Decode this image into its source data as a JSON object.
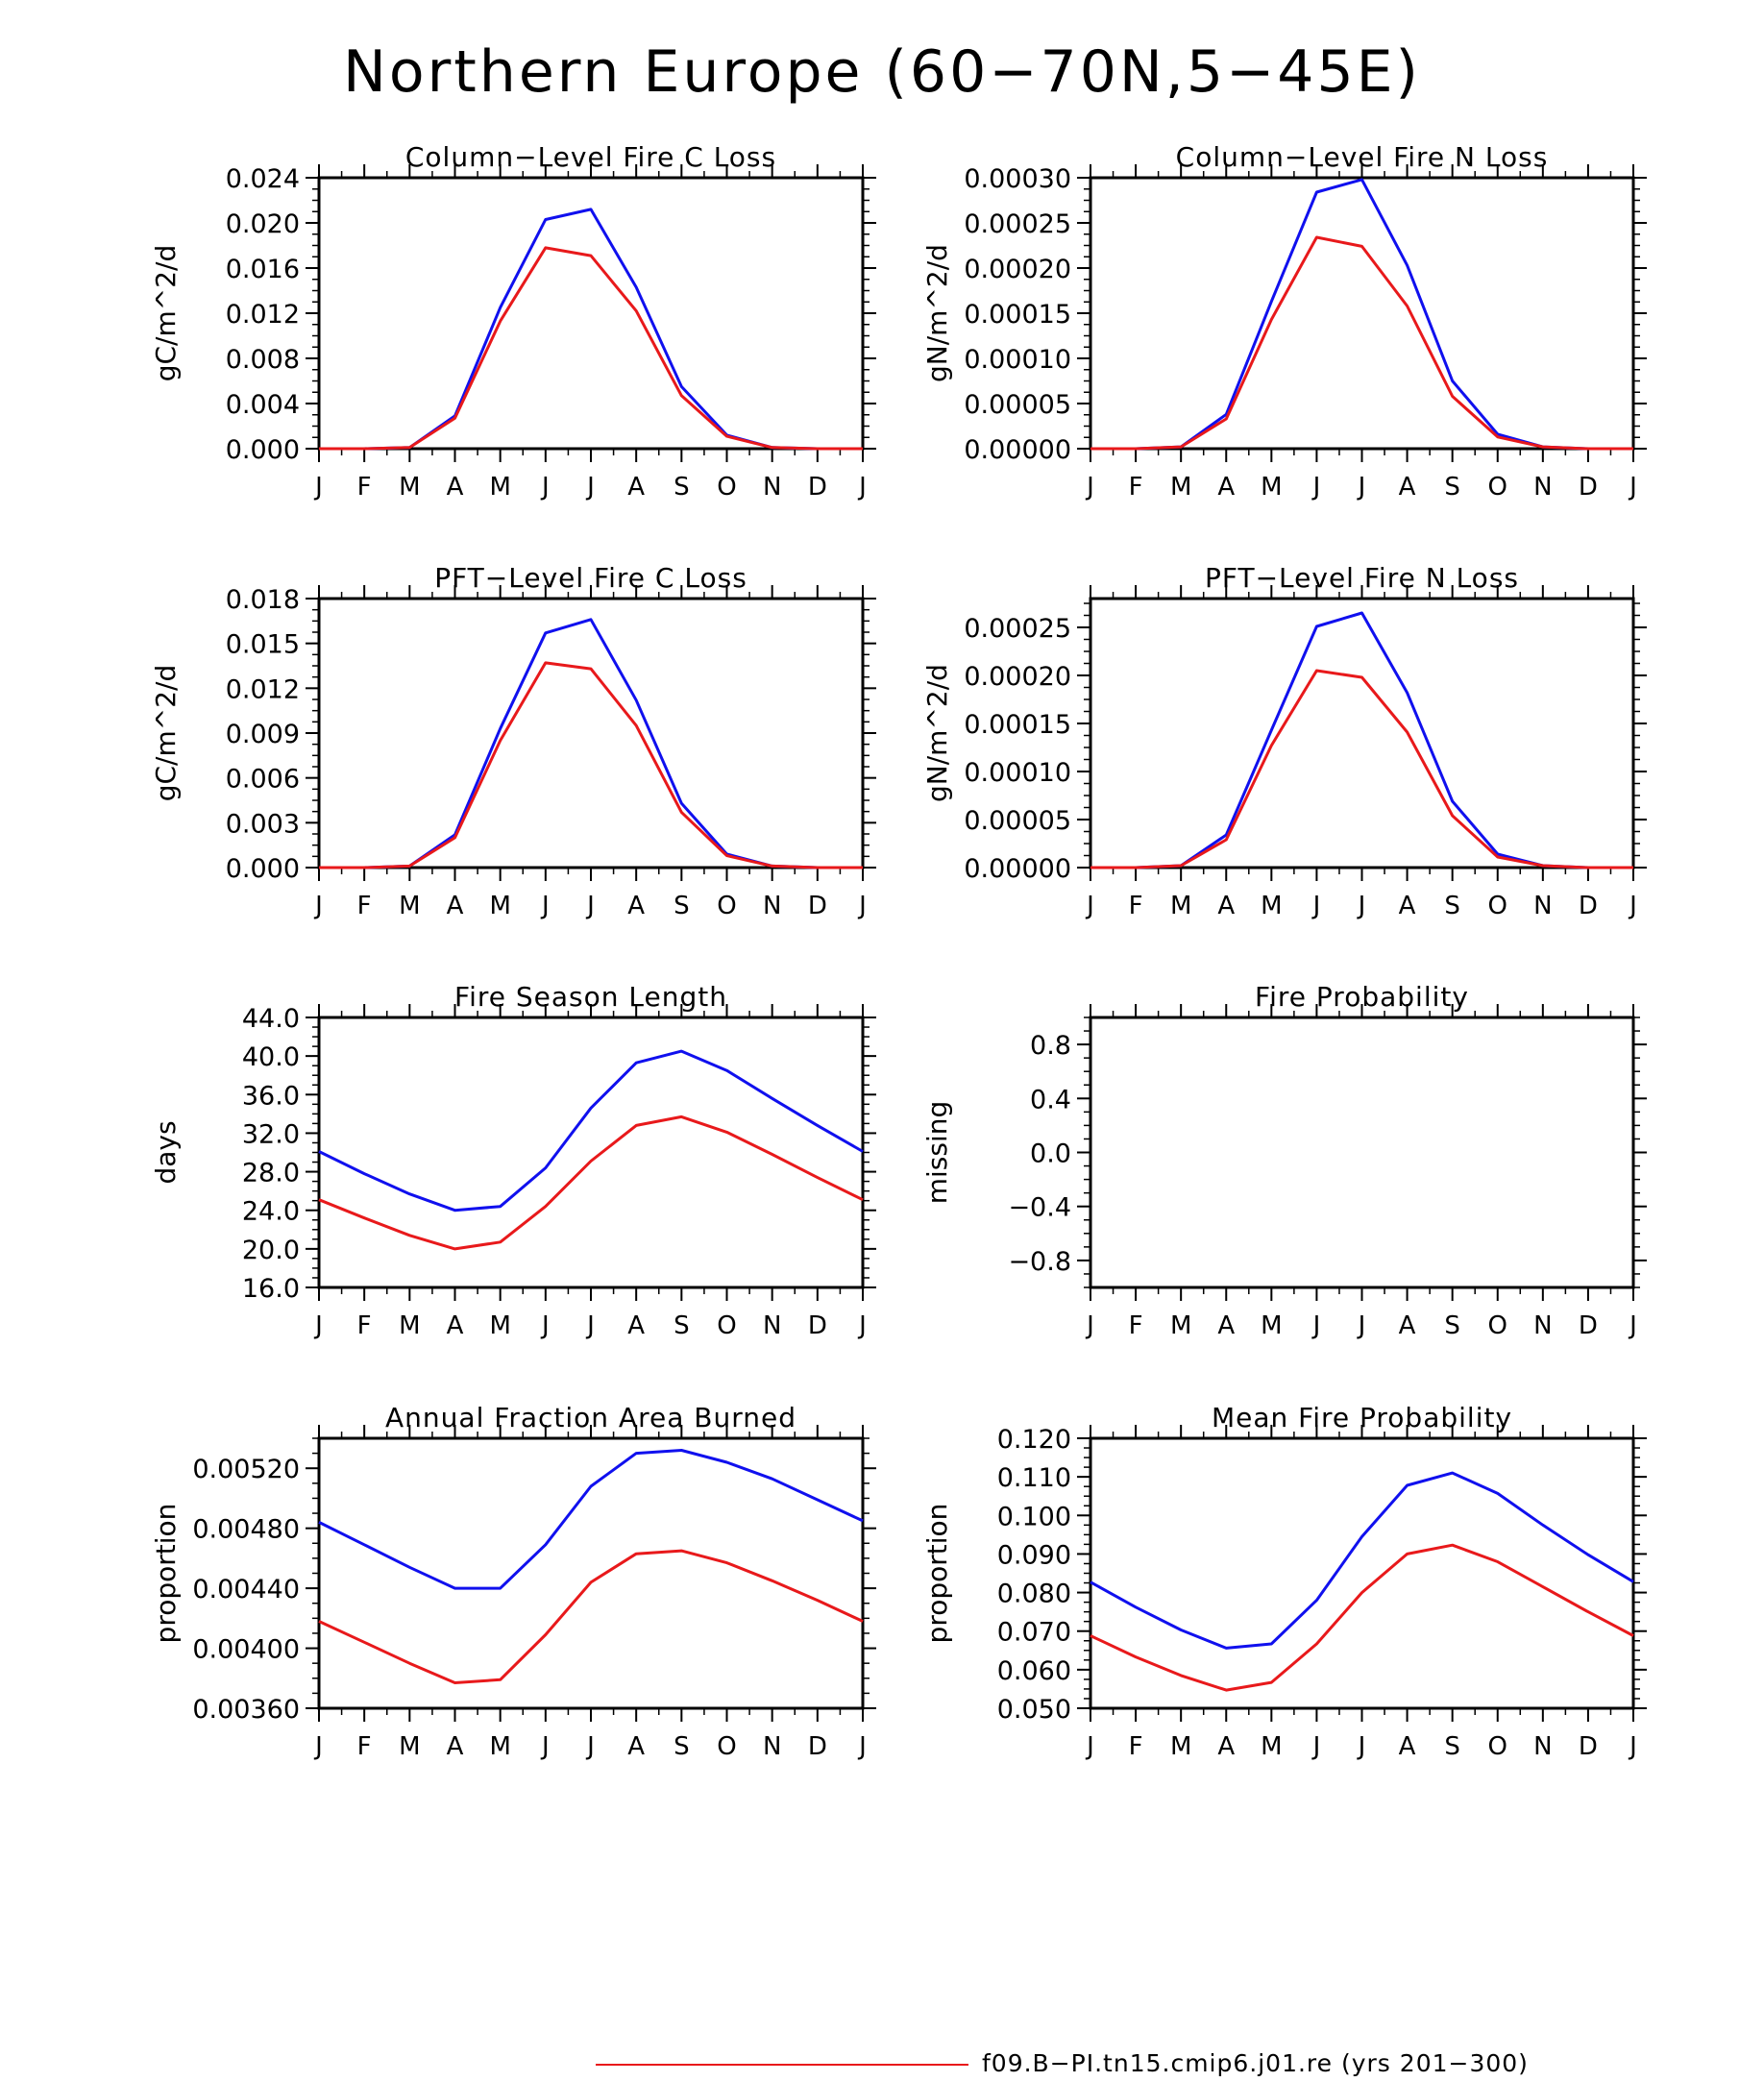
{
  "figure": {
    "title": "Northern Europe (60−70N,5−45E)",
    "legend": {
      "label": "f09.B−PI.tn15.cmip6.j01.re (yrs 201−300)",
      "color": "#e8191b"
    },
    "series_colors": {
      "blue": "#1010ee",
      "red": "#e8191b"
    }
  },
  "chart_data": [
    {
      "type": "line",
      "title": "Column−Level Fire C Loss",
      "ylabel": "gC/m^2/d",
      "ylim": [
        0,
        0.024
      ],
      "yticks": [
        "0.000",
        "0.004",
        "0.008",
        "0.012",
        "0.016",
        "0.020",
        "0.024"
      ],
      "categories": [
        "J",
        "F",
        "M",
        "A",
        "M",
        "J",
        "J",
        "A",
        "S",
        "O",
        "N",
        "D",
        "J"
      ],
      "series": [
        {
          "color": "#1010ee",
          "values": [
            0.0,
            0.0,
            0.0001,
            0.0029,
            0.0125,
            0.0203,
            0.0212,
            0.0143,
            0.0055,
            0.0012,
            0.0001,
            0.0,
            0.0
          ]
        },
        {
          "color": "#e8191b",
          "values": [
            0.0,
            0.0,
            0.0001,
            0.0027,
            0.0113,
            0.0178,
            0.0171,
            0.0122,
            0.0047,
            0.0011,
            0.0001,
            0.0,
            0.0
          ]
        }
      ]
    },
    {
      "type": "line",
      "title": "Column−Level Fire N Loss",
      "ylabel": "gN/m^2/d",
      "ylim": [
        0,
        0.0003
      ],
      "yticks": [
        "0.00000",
        "0.00005",
        "0.00010",
        "0.00015",
        "0.00020",
        "0.00025",
        "0.00030"
      ],
      "categories": [
        "J",
        "F",
        "M",
        "A",
        "M",
        "J",
        "J",
        "A",
        "S",
        "O",
        "N",
        "D",
        "J"
      ],
      "series": [
        {
          "color": "#1010ee",
          "values": [
            0.0,
            0.0,
            2e-06,
            3.8e-05,
            0.000163,
            0.000284,
            0.000298,
            0.000203,
            7.5e-05,
            1.6e-05,
            2e-06,
            0.0,
            0.0
          ]
        },
        {
          "color": "#e8191b",
          "values": [
            0.0,
            0.0,
            2e-06,
            3.3e-05,
            0.000143,
            0.000234,
            0.000224,
            0.000158,
            5.8e-05,
            1.3e-05,
            2e-06,
            0.0,
            0.0
          ]
        }
      ]
    },
    {
      "type": "line",
      "title": "PFT−Level Fire C Loss",
      "ylabel": "gC/m^2/d",
      "ylim": [
        0,
        0.018
      ],
      "yticks": [
        "0.000",
        "0.003",
        "0.006",
        "0.009",
        "0.012",
        "0.015",
        "0.018"
      ],
      "categories": [
        "J",
        "F",
        "M",
        "A",
        "M",
        "J",
        "J",
        "A",
        "S",
        "O",
        "N",
        "D",
        "J"
      ],
      "series": [
        {
          "color": "#1010ee",
          "values": [
            0.0,
            0.0,
            0.0001,
            0.0022,
            0.0093,
            0.0157,
            0.0166,
            0.0112,
            0.0043,
            0.0009,
            0.0001,
            0.0,
            0.0
          ]
        },
        {
          "color": "#e8191b",
          "values": [
            0.0,
            0.0,
            0.0001,
            0.002,
            0.0085,
            0.0137,
            0.0133,
            0.0095,
            0.0037,
            0.0008,
            0.0001,
            0.0,
            0.0
          ]
        }
      ]
    },
    {
      "type": "line",
      "title": "PFT−Level Fire N Loss",
      "ylabel": "gN/m^2/d",
      "ylim": [
        0,
        0.00028
      ],
      "yticks": [
        "0.00000",
        "0.00005",
        "0.00010",
        "0.00015",
        "0.00020",
        "0.00025"
      ],
      "categories": [
        "J",
        "F",
        "M",
        "A",
        "M",
        "J",
        "J",
        "A",
        "S",
        "O",
        "N",
        "D",
        "J"
      ],
      "series": [
        {
          "color": "#1010ee",
          "values": [
            0.0,
            0.0,
            2e-06,
            3.4e-05,
            0.000143,
            0.000251,
            0.000265,
            0.000182,
            6.9e-05,
            1.4e-05,
            2e-06,
            0.0,
            0.0
          ]
        },
        {
          "color": "#e8191b",
          "values": [
            0.0,
            0.0,
            2e-06,
            2.9e-05,
            0.000127,
            0.000205,
            0.000198,
            0.000141,
            5.4e-05,
            1.1e-05,
            2e-06,
            0.0,
            0.0
          ]
        }
      ]
    },
    {
      "type": "line",
      "title": "Fire Season Length",
      "ylabel": "days",
      "ylim": [
        16,
        44
      ],
      "yticks": [
        "16.0",
        "20.0",
        "24.0",
        "28.0",
        "32.0",
        "36.0",
        "40.0",
        "44.0"
      ],
      "categories": [
        "J",
        "F",
        "M",
        "A",
        "M",
        "J",
        "J",
        "A",
        "S",
        "O",
        "N",
        "D",
        "J"
      ],
      "series": [
        {
          "color": "#1010ee",
          "values": [
            30.1,
            27.8,
            25.7,
            24.0,
            24.4,
            28.4,
            34.6,
            39.3,
            40.5,
            38.5,
            35.6,
            32.8,
            30.1
          ]
        },
        {
          "color": "#e8191b",
          "values": [
            25.1,
            23.2,
            21.4,
            20.0,
            20.7,
            24.4,
            29.1,
            32.8,
            33.7,
            32.1,
            29.8,
            27.4,
            25.1
          ]
        }
      ]
    },
    {
      "type": "line",
      "title": "Fire Probability",
      "ylabel": "missing",
      "ylim": [
        -1,
        1
      ],
      "yticks": [
        "−0.8",
        "−0.4",
        "0.0",
        "0.4",
        "0.8"
      ],
      "ytick_values": [
        -0.8,
        -0.4,
        0.0,
        0.4,
        0.8
      ],
      "categories": [
        "J",
        "F",
        "M",
        "A",
        "M",
        "J",
        "J",
        "A",
        "S",
        "O",
        "N",
        "D",
        "J"
      ],
      "series": []
    },
    {
      "type": "line",
      "title": "Annual Fraction Area Burned",
      "ylabel": "proportion",
      "ylim": [
        0.0036,
        0.0054
      ],
      "yticks": [
        "0.00360",
        "0.00400",
        "0.00440",
        "0.00480",
        "0.00520"
      ],
      "categories": [
        "J",
        "F",
        "M",
        "A",
        "M",
        "J",
        "J",
        "A",
        "S",
        "O",
        "N",
        "D",
        "J"
      ],
      "series": [
        {
          "color": "#1010ee",
          "values": [
            0.00484,
            0.00469,
            0.00454,
            0.0044,
            0.0044,
            0.00469,
            0.00508,
            0.0053,
            0.00532,
            0.00524,
            0.00513,
            0.00499,
            0.00485
          ]
        },
        {
          "color": "#e8191b",
          "values": [
            0.00418,
            0.00404,
            0.0039,
            0.00377,
            0.00379,
            0.00409,
            0.00444,
            0.00463,
            0.00465,
            0.00457,
            0.00445,
            0.00432,
            0.00418
          ]
        }
      ]
    },
    {
      "type": "line",
      "title": "Mean Fire Probability",
      "ylabel": "proportion",
      "ylim": [
        0.05,
        0.12
      ],
      "yticks": [
        "0.050",
        "0.060",
        "0.070",
        "0.080",
        "0.090",
        "0.100",
        "0.110",
        "0.120"
      ],
      "categories": [
        "J",
        "F",
        "M",
        "A",
        "M",
        "J",
        "J",
        "A",
        "S",
        "O",
        "N",
        "D",
        "J"
      ],
      "series": [
        {
          "color": "#1010ee",
          "values": [
            0.0827,
            0.0762,
            0.0703,
            0.0656,
            0.0667,
            0.078,
            0.0945,
            0.1078,
            0.111,
            0.1057,
            0.0975,
            0.0898,
            0.0828
          ]
        },
        {
          "color": "#e8191b",
          "values": [
            0.0688,
            0.0633,
            0.0585,
            0.0547,
            0.0567,
            0.0667,
            0.08,
            0.09,
            0.0923,
            0.088,
            0.0815,
            0.075,
            0.0688
          ]
        }
      ]
    }
  ]
}
